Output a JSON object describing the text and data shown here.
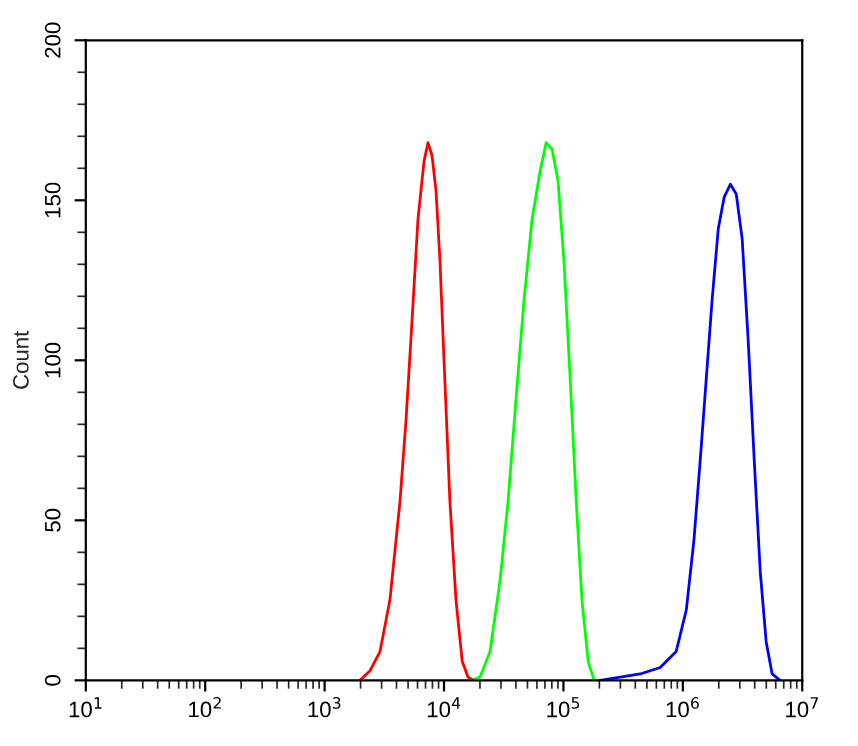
{
  "chart_data": {
    "type": "line",
    "ylabel": "Count",
    "log": "x",
    "grid": false,
    "legend": false,
    "marker": "none",
    "line_style": "solid",
    "xlim": [
      10,
      10000000
    ],
    "ylim": [
      0,
      200
    ],
    "xticks": [
      {
        "value": 10,
        "label": "10$^{1}$"
      },
      {
        "value": 100,
        "label": "10$^{2}$"
      },
      {
        "value": 1000,
        "label": "10$^{3}$"
      },
      {
        "value": 10000,
        "label": "10$^{4}$"
      },
      {
        "value": 100000,
        "label": "10$^{5}$"
      },
      {
        "value": 1000000,
        "label": "10$^{6}$"
      },
      {
        "value": 10000000,
        "label": "10$^{7}$"
      }
    ],
    "yticks": [
      0,
      50,
      100,
      150,
      200
    ],
    "series": [
      {
        "color": "#ff0000",
        "x": [
          1980,
          2400,
          2910,
          3520,
          4280,
          4800,
          5390,
          6050,
          6790,
          7340,
          7930,
          8570,
          9250,
          10000,
          11200,
          12600,
          14200,
          15900,
          17800
        ],
        "values": [
          0,
          3,
          9,
          25,
          56,
          81,
          112,
          144,
          162,
          168,
          164,
          153,
          131,
          100,
          56,
          25,
          6,
          1,
          0
        ]
      },
      {
        "color": "#00ff00",
        "x": [
          17100,
          20000,
          24300,
          29400,
          34400,
          40100,
          46800,
          54600,
          63700,
          71600,
          80300,
          90200,
          101000,
          114000,
          128000,
          143000,
          161000,
          181000
        ],
        "values": [
          0,
          1,
          9,
          31,
          56,
          88,
          119,
          144,
          159,
          168,
          166,
          156,
          131,
          94,
          56,
          25,
          6,
          0
        ]
      },
      {
        "color": "#0000ff",
        "x": [
          203000,
          299000,
          439000,
          646000,
          879000,
          1070000,
          1240000,
          1400000,
          1570000,
          1760000,
          1980000,
          2220000,
          2500000,
          2800000,
          3140000,
          3530000,
          3960000,
          4450000,
          4990000,
          5600000,
          6530000
        ],
        "values": [
          0,
          1,
          2,
          4,
          9,
          22,
          44,
          69,
          94,
          119,
          141,
          151,
          155,
          152,
          138,
          106,
          69,
          34,
          12,
          2,
          0
        ]
      }
    ]
  }
}
